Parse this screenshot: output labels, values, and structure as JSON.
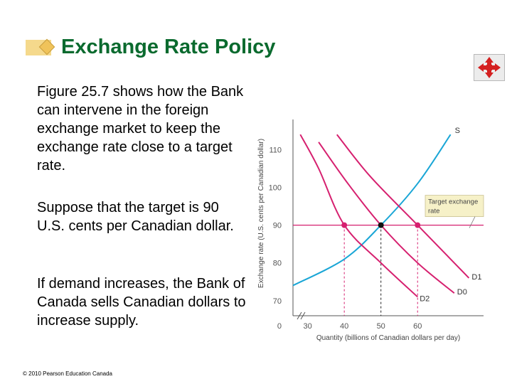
{
  "slide": {
    "title": "Exchange Rate Policy",
    "paragraphs": [
      "Figure 25.7 shows how the Bank can intervene in the foreign exchange market to keep the exchange rate close to a target rate.",
      "Suppose that the target is 90 U.S. cents per Canadian dollar.",
      "If demand increases, the Bank of Canada sells Canadian dollars to increase supply."
    ],
    "copyright": "© 2010 Pearson Education Canada",
    "icons": {
      "title_bullet": "diamond-bullet-icon",
      "nav": "four-way-arrow-icon"
    },
    "colors": {
      "title": "#0a6a2e",
      "demand": "#d6206f",
      "supply": "#1aa6d6",
      "target": "#d6206f"
    }
  },
  "chart_data": {
    "type": "line",
    "xlabel": "Quantity (billions of Canadian dollars per day)",
    "ylabel": "Exchange rate (U.S. cents per Canadian dollar)",
    "origin_label": "0",
    "x_ticks": [
      "30",
      "40",
      "50",
      "60"
    ],
    "x_tick_values": [
      30,
      40,
      50,
      60
    ],
    "y_ticks": [
      "70",
      "80",
      "90",
      "100",
      "110"
    ],
    "y_tick_values": [
      70,
      80,
      90,
      100,
      110
    ],
    "xlim": [
      26,
      78
    ],
    "ylim": [
      66,
      118
    ],
    "target_rate": 90,
    "target_label_line1": "Target exchange",
    "target_label_line2": "rate",
    "equilibrium_quantity": 50,
    "intervention_points": [
      40,
      60
    ],
    "series": [
      {
        "name": "S",
        "points": [
          [
            26,
            74
          ],
          [
            40,
            81
          ],
          [
            50,
            90
          ],
          [
            60,
            101
          ],
          [
            69,
            114
          ]
        ]
      },
      {
        "name": "D1",
        "points": [
          [
            38,
            114
          ],
          [
            47,
            103
          ],
          [
            60,
            90
          ],
          [
            68,
            82
          ],
          [
            74,
            76
          ]
        ]
      },
      {
        "name": "D0",
        "points": [
          [
            33,
            112
          ],
          [
            41,
            101
          ],
          [
            50,
            90
          ],
          [
            60,
            80
          ],
          [
            70,
            72
          ]
        ]
      },
      {
        "name": "D2",
        "points": [
          [
            28,
            114
          ],
          [
            33,
            105
          ],
          [
            40,
            90
          ],
          [
            50,
            80
          ],
          [
            60,
            71
          ]
        ]
      }
    ],
    "series_labels": {
      "S": "S",
      "D1": "D1",
      "D0": "D0",
      "D2": "D2"
    }
  }
}
